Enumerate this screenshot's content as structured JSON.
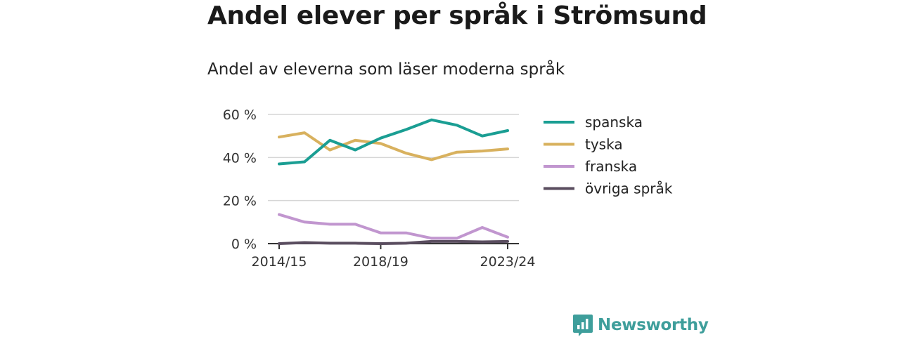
{
  "header": {
    "title": "Andel elever per språk i Strömsund",
    "subtitle": "Andel av eleverna som läser moderna språk"
  },
  "brand": {
    "name": "Newsworthy",
    "icon": "newsworthy-logo-icon",
    "color": "#3e9e9b"
  },
  "chart_data": {
    "type": "line",
    "x": [
      "2014/15",
      "2015/16",
      "2016/17",
      "2017/18",
      "2018/19",
      "2019/20",
      "2020/21",
      "2021/22",
      "2022/23",
      "2023/24"
    ],
    "x_tick_labels": [
      "2014/15",
      "2018/19",
      "2023/24"
    ],
    "y_ticks": [
      0,
      20,
      40,
      60
    ],
    "y_tick_labels": [
      "0 %",
      "20 %",
      "40 %",
      "60 %"
    ],
    "ylim": [
      0,
      60
    ],
    "grid": true,
    "legend_position": "right",
    "series": [
      {
        "name": "spanska",
        "color": "#1a9e93",
        "values": [
          37,
          38,
          48,
          43.5,
          49,
          53,
          57.5,
          55,
          50,
          52.5
        ]
      },
      {
        "name": "tyska",
        "color": "#d8b15e",
        "values": [
          49.5,
          51.5,
          43.5,
          48,
          46.5,
          42,
          39,
          42.5,
          43,
          44
        ]
      },
      {
        "name": "franska",
        "color": "#c196cf",
        "values": [
          13.5,
          10,
          9,
          9,
          5,
          5,
          2.5,
          2.5,
          7.5,
          3
        ]
      },
      {
        "name": "övriga språk",
        "color": "#5a4d5f",
        "values": [
          0,
          0.5,
          0.2,
          0.2,
          0,
          0.2,
          1,
          1,
          0.8,
          1
        ]
      }
    ]
  }
}
